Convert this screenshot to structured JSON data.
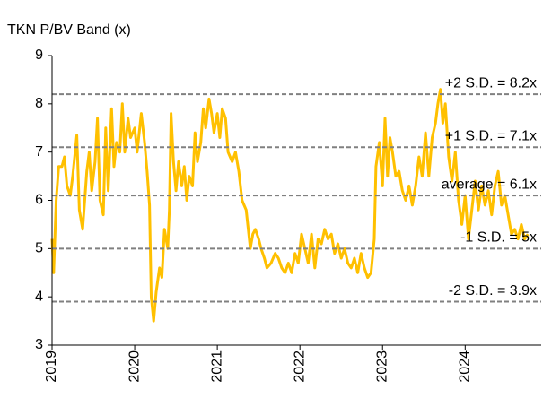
{
  "chart_data": {
    "type": "line",
    "title": "TKN P/BV Band (x)",
    "xlim": [
      2019,
      2024.92
    ],
    "xticks": [
      2019,
      2020,
      2021,
      2022,
      2023,
      2024
    ],
    "ylim": [
      3,
      9
    ],
    "yticks": [
      3,
      4,
      5,
      6,
      7,
      8,
      9
    ],
    "reference_lines": [
      {
        "label": "+2 S.D. = 8.2x",
        "value": 8.2
      },
      {
        "label": "+1 S.D. = 7.1x",
        "value": 7.1
      },
      {
        "label": "average = 6.1x",
        "value": 6.1
      },
      {
        "label": "-1 S.D. = 5x",
        "value": 5
      },
      {
        "label": "-2 S.D. = 3.9x",
        "value": 3.9
      }
    ],
    "reference_color": "#808080",
    "series": [
      {
        "color": "#FFC000",
        "x": [
          2019.0,
          2019.02,
          2019.05,
          2019.08,
          2019.12,
          2019.15,
          2019.18,
          2019.22,
          2019.25,
          2019.3,
          2019.33,
          2019.37,
          2019.42,
          2019.45,
          2019.48,
          2019.52,
          2019.55,
          2019.58,
          2019.62,
          2019.65,
          2019.68,
          2019.72,
          2019.75,
          2019.78,
          2019.82,
          2019.85,
          2019.88,
          2019.92,
          2019.95,
          2020.0,
          2020.03,
          2020.08,
          2020.12,
          2020.15,
          2020.18,
          2020.2,
          2020.23,
          2020.26,
          2020.3,
          2020.33,
          2020.36,
          2020.4,
          2020.42,
          2020.44,
          2020.47,
          2020.5,
          2020.53,
          2020.57,
          2020.6,
          2020.63,
          2020.66,
          2020.7,
          2020.73,
          2020.76,
          2020.8,
          2020.83,
          2020.86,
          2020.9,
          2020.93,
          2020.96,
          2021.0,
          2021.03,
          2021.06,
          2021.1,
          2021.13,
          2021.18,
          2021.22,
          2021.26,
          2021.3,
          2021.35,
          2021.4,
          2021.43,
          2021.46,
          2021.5,
          2021.53,
          2021.57,
          2021.6,
          2021.65,
          2021.7,
          2021.74,
          2021.78,
          2021.82,
          2021.86,
          2021.9,
          2021.94,
          2021.98,
          2022.02,
          2022.06,
          2022.1,
          2022.14,
          2022.18,
          2022.22,
          2022.26,
          2022.3,
          2022.34,
          2022.38,
          2022.42,
          2022.46,
          2022.5,
          2022.54,
          2022.58,
          2022.62,
          2022.66,
          2022.7,
          2022.74,
          2022.78,
          2022.82,
          2022.86,
          2022.9,
          2022.92,
          2022.96,
          2023.0,
          2023.03,
          2023.06,
          2023.09,
          2023.12,
          2023.16,
          2023.2,
          2023.24,
          2023.28,
          2023.32,
          2023.36,
          2023.4,
          2023.44,
          2023.48,
          2023.52,
          2023.56,
          2023.6,
          2023.64,
          2023.67,
          2023.7,
          2023.73,
          2023.76,
          2023.8,
          2023.84,
          2023.88,
          2023.92,
          2023.96,
          2024.0,
          2024.04,
          2024.08,
          2024.12,
          2024.16,
          2024.2,
          2024.24,
          2024.28,
          2024.32,
          2024.36,
          2024.4,
          2024.44,
          2024.48,
          2024.52,
          2024.56,
          2024.6,
          2024.64,
          2024.68,
          2024.72,
          2024.76
        ],
        "values": [
          5.2,
          4.5,
          6.0,
          6.7,
          6.7,
          6.9,
          6.3,
          6.1,
          6.5,
          7.35,
          5.8,
          5.4,
          6.6,
          7.0,
          6.2,
          6.8,
          7.7,
          6.0,
          5.7,
          7.5,
          6.2,
          7.9,
          6.7,
          7.2,
          7.0,
          8.0,
          7.0,
          7.7,
          7.3,
          7.5,
          7.0,
          7.8,
          7.2,
          6.6,
          5.9,
          4.0,
          3.5,
          4.1,
          4.6,
          4.4,
          5.4,
          5.0,
          5.8,
          7.8,
          6.8,
          6.2,
          6.8,
          6.3,
          6.7,
          6.0,
          6.5,
          6.3,
          7.4,
          6.8,
          7.2,
          7.9,
          7.5,
          8.1,
          7.8,
          7.4,
          7.8,
          7.3,
          7.9,
          7.7,
          7.0,
          6.8,
          7.0,
          6.6,
          6.0,
          5.8,
          5.0,
          5.3,
          5.4,
          5.2,
          5.0,
          4.8,
          4.6,
          4.7,
          4.9,
          4.8,
          4.6,
          4.5,
          4.7,
          4.5,
          4.9,
          4.7,
          5.3,
          5.0,
          4.7,
          5.3,
          4.6,
          5.2,
          5.1,
          5.4,
          5.2,
          5.3,
          4.9,
          5.1,
          4.8,
          5.0,
          4.7,
          4.6,
          4.8,
          4.5,
          4.9,
          4.6,
          4.4,
          4.5,
          5.2,
          6.7,
          7.2,
          6.3,
          7.7,
          6.5,
          7.3,
          7.0,
          6.5,
          6.6,
          6.2,
          6.0,
          6.3,
          5.9,
          6.3,
          6.9,
          6.5,
          7.4,
          6.5,
          7.3,
          7.6,
          8.0,
          8.3,
          7.6,
          8.0,
          6.9,
          6.4,
          7.0,
          6.0,
          5.5,
          6.1,
          5.2,
          5.8,
          6.4,
          5.8,
          6.3,
          5.9,
          6.2,
          5.7,
          6.3,
          6.6,
          5.9,
          6.1,
          5.7,
          5.3,
          5.4,
          5.2,
          5.5,
          5.2,
          5.3
        ]
      }
    ]
  }
}
